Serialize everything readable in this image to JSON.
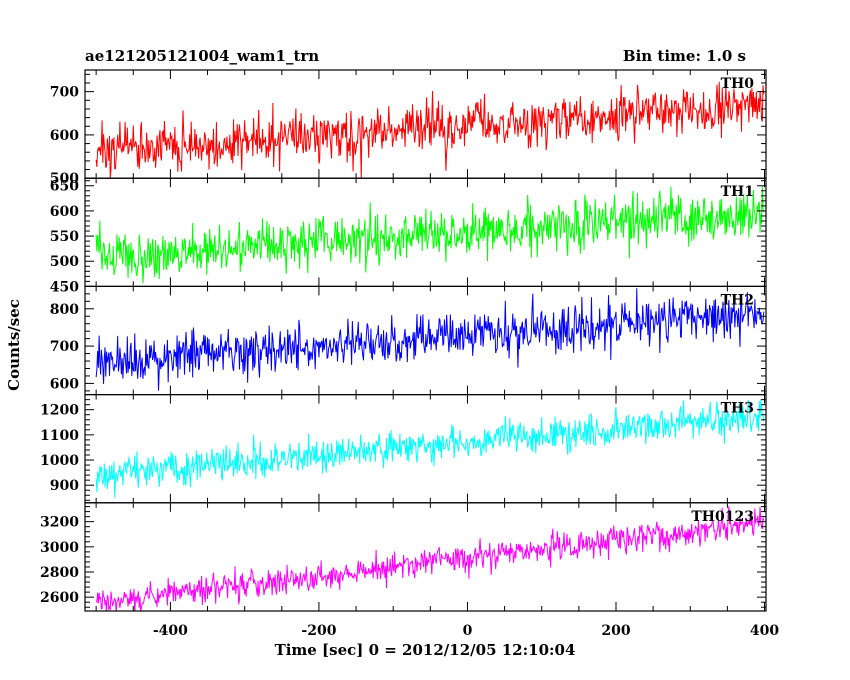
{
  "chart_data": {
    "type": "line",
    "title": "ae121205121004_wam1_trn",
    "subtitle": "Bin time: 1.0 s",
    "xlabel": "Time [sec] 0 = 2012/12/05 12:10:04",
    "ylabel": "Counts/sec",
    "xlim": [
      -515,
      402
    ],
    "xticks": [
      -400,
      -200,
      0,
      200,
      400
    ],
    "x_start": -500,
    "x_end": 399,
    "grid": false,
    "legend": "none",
    "panels": [
      {
        "name": "TH0",
        "color": "#ff0000",
        "ylim": [
          500,
          750
        ],
        "yticks": [
          500,
          600,
          700
        ],
        "trend_start": 565,
        "trend_end": 668,
        "noise": 28
      },
      {
        "name": "TH1",
        "color": "#00ff00",
        "ylim": [
          450,
          665
        ],
        "yticks": [
          450,
          500,
          550,
          600,
          650
        ],
        "trend_start": 510,
        "trend_end": 595,
        "noise": 25
      },
      {
        "name": "TH2",
        "color": "#0000ff",
        "ylim": [
          570,
          860
        ],
        "yticks": [
          600,
          700,
          800
        ],
        "trend_start": 650,
        "trend_end": 790,
        "noise": 32
      },
      {
        "name": "TH3",
        "color": "#00ffff",
        "ylim": [
          830,
          1260
        ],
        "yticks": [
          900,
          1000,
          1100,
          1200
        ],
        "trend_start": 945,
        "trend_end": 1170,
        "noise": 35
      },
      {
        "name": "TH0123",
        "color": "#ff00ff",
        "ylim": [
          2490,
          3350
        ],
        "yticks": [
          2600,
          2800,
          3000,
          3200
        ],
        "trend_start": 2560,
        "trend_end": 3190,
        "noise": 55
      }
    ]
  }
}
